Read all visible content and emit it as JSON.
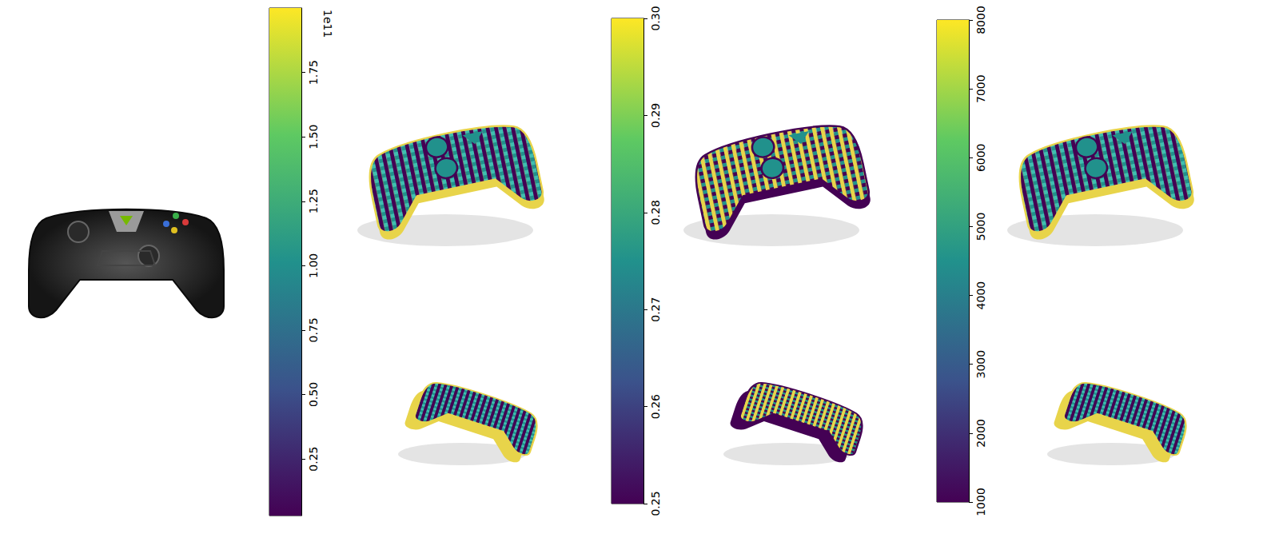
{
  "chart_data": [
    {
      "type": "colorbar",
      "color": "viridis",
      "annotation": "1e11",
      "ylim": [
        0.03,
        2.0
      ],
      "yticks": [
        0.25,
        {
          "value": 0.5,
          "label": "0.50"
        },
        0.75,
        {
          "value": 1,
          "label": "1.00"
        },
        1.25,
        {
          "value": 1.5,
          "label": "1.50"
        },
        1.75
      ]
    },
    {
      "type": "colorbar",
      "color": "viridis",
      "ylim": [
        0.25,
        0.3
      ],
      "yticks": [
        0.25,
        0.26,
        0.27,
        0.28,
        0.29,
        {
          "value": 0.3,
          "label": "0.30"
        }
      ]
    },
    {
      "type": "colorbar",
      "color": "viridis",
      "ylim": [
        1000,
        8000
      ],
      "yticks": [
        1000,
        2000,
        3000,
        4000,
        5000,
        6000,
        7000,
        8000
      ]
    }
  ]
}
